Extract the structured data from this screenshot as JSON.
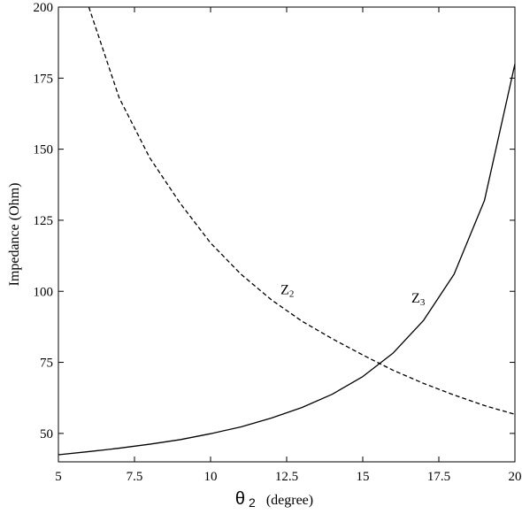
{
  "chart_data": {
    "type": "line",
    "xlabel_symbol": "θ",
    "xlabel_subscript": "2",
    "xlabel_unit": "(degree)",
    "ylabel": "Impedance (Ohm)",
    "xlim": [
      5,
      20
    ],
    "ylim": [
      40,
      200
    ],
    "xticks": [
      5,
      7.5,
      10,
      12.5,
      15,
      17.5,
      20
    ],
    "xtick_labels": [
      "5",
      "7.5",
      "10",
      "12.5",
      "15",
      "17.5",
      "20"
    ],
    "yticks": [
      50,
      75,
      100,
      125,
      150,
      175,
      200
    ],
    "ytick_labels": [
      "50",
      "75",
      "100",
      "125",
      "150",
      "175",
      "200"
    ],
    "grid": false,
    "series": [
      {
        "label_main": "Z",
        "label_sub": "2",
        "style": "dashed",
        "color": "#000000",
        "label_at": [
          12.3,
          99
        ],
        "x": [
          6,
          7,
          8,
          9,
          10,
          11,
          12,
          13,
          14,
          15,
          16,
          17,
          18,
          19,
          20
        ],
        "y": [
          200,
          168,
          147,
          131,
          117,
          106,
          97,
          89.5,
          83.3,
          77.6,
          72.2,
          67.6,
          63.5,
          59.8,
          56.7
        ]
      },
      {
        "label_main": "Z",
        "label_sub": "3",
        "style": "solid",
        "color": "#000000",
        "label_at": [
          16.6,
          96
        ],
        "x": [
          5,
          6,
          7,
          8,
          9,
          10,
          11,
          12,
          13,
          14,
          15,
          16,
          17,
          18,
          19,
          20
        ],
        "y": [
          42.5,
          43.6,
          44.8,
          46.2,
          47.8,
          49.9,
          52.3,
          55.4,
          59.1,
          63.8,
          70.0,
          78.3,
          89.8,
          106,
          132,
          180
        ]
      }
    ]
  }
}
